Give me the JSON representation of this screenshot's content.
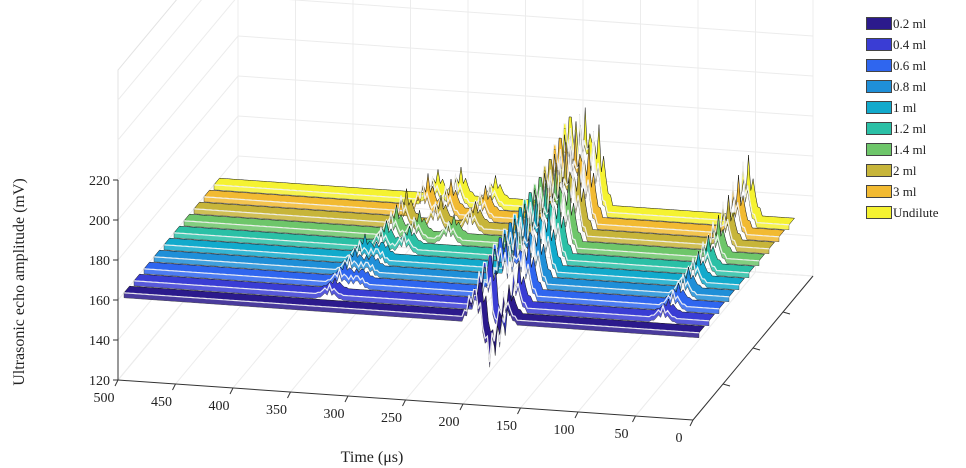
{
  "chart_data": {
    "type": "waterfall-3d",
    "xlabel": "Time (μs)",
    "zlabel": "Ultrasonic echo amplitude (mV)",
    "x_ticks": [
      "500",
      "450",
      "400",
      "350",
      "300",
      "250",
      "200",
      "150",
      "100",
      "50",
      "0"
    ],
    "z_ticks": [
      "120",
      "140",
      "160",
      "180",
      "200",
      "220"
    ],
    "xlim": [
      0,
      500
    ],
    "zlim": [
      120,
      220
    ],
    "grid": true,
    "legend_position": "right",
    "baseline_mV": 160,
    "series": [
      {
        "name": "0.2 ml",
        "color": "#2b1a8c",
        "peaks": [
          {
            "t": 195,
            "a": 18
          },
          {
            "t": 182,
            "a": -22
          },
          {
            "t": 170,
            "a": 14
          }
        ]
      },
      {
        "name": "0.4 ml",
        "color": "#3a3dd4",
        "peaks": [
          {
            "t": 330,
            "a": 5
          },
          {
            "t": 195,
            "a": 28
          },
          {
            "t": 182,
            "a": -18
          },
          {
            "t": 170,
            "a": 20
          },
          {
            "t": 40,
            "a": 6
          }
        ]
      },
      {
        "name": "0.6 ml",
        "color": "#2f66ef",
        "peaks": [
          {
            "t": 330,
            "a": 7
          },
          {
            "t": 315,
            "a": 5
          },
          {
            "t": 195,
            "a": 32
          },
          {
            "t": 182,
            "a": 25
          },
          {
            "t": 170,
            "a": 26
          },
          {
            "t": 40,
            "a": 8
          }
        ]
      },
      {
        "name": "0.8 ml",
        "color": "#1f8fd8",
        "peaks": [
          {
            "t": 330,
            "a": 8
          },
          {
            "t": 315,
            "a": 6
          },
          {
            "t": 195,
            "a": 34
          },
          {
            "t": 182,
            "a": 30
          },
          {
            "t": 170,
            "a": 27
          },
          {
            "t": 40,
            "a": 10
          }
        ]
      },
      {
        "name": "1 ml",
        "color": "#12aacc",
        "peaks": [
          {
            "t": 330,
            "a": 9
          },
          {
            "t": 315,
            "a": 7
          },
          {
            "t": 195,
            "a": 36
          },
          {
            "t": 182,
            "a": 32
          },
          {
            "t": 170,
            "a": 29
          },
          {
            "t": 40,
            "a": 12
          }
        ]
      },
      {
        "name": "1.2 ml",
        "color": "#2bc0a6",
        "peaks": [
          {
            "t": 320,
            "a": 10
          },
          {
            "t": 300,
            "a": 8
          },
          {
            "t": 195,
            "a": 38
          },
          {
            "t": 182,
            "a": 34
          },
          {
            "t": 170,
            "a": 30
          },
          {
            "t": 40,
            "a": 14
          }
        ]
      },
      {
        "name": "1.4 ml",
        "color": "#6ec66a",
        "peaks": [
          {
            "t": 320,
            "a": 12
          },
          {
            "t": 300,
            "a": 10
          },
          {
            "t": 270,
            "a": 9
          },
          {
            "t": 195,
            "a": 40
          },
          {
            "t": 182,
            "a": 36
          },
          {
            "t": 170,
            "a": 31
          },
          {
            "t": 40,
            "a": 18
          }
        ]
      },
      {
        "name": "2 ml",
        "color": "#c7b53a",
        "peaks": [
          {
            "t": 320,
            "a": 14
          },
          {
            "t": 290,
            "a": 12
          },
          {
            "t": 260,
            "a": 10
          },
          {
            "t": 195,
            "a": 44
          },
          {
            "t": 182,
            "a": 38
          },
          {
            "t": 170,
            "a": 33
          },
          {
            "t": 40,
            "a": 22
          }
        ]
      },
      {
        "name": "3 ml",
        "color": "#f2ba32",
        "peaks": [
          {
            "t": 310,
            "a": 16
          },
          {
            "t": 290,
            "a": 14
          },
          {
            "t": 260,
            "a": 12
          },
          {
            "t": 195,
            "a": 50
          },
          {
            "t": 182,
            "a": 42
          },
          {
            "t": 170,
            "a": 36
          },
          {
            "t": 40,
            "a": 26
          }
        ]
      },
      {
        "name": "Undilute",
        "color": "#f5f231",
        "peaks": [
          {
            "t": 310,
            "a": 12
          },
          {
            "t": 290,
            "a": 14
          },
          {
            "t": 260,
            "a": 11
          },
          {
            "t": 195,
            "a": 56
          },
          {
            "t": 182,
            "a": 48
          },
          {
            "t": 170,
            "a": 40
          },
          {
            "t": 40,
            "a": 30
          }
        ]
      }
    ]
  }
}
